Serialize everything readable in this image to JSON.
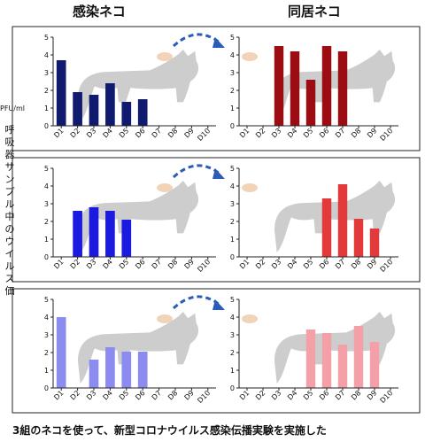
{
  "headers": {
    "infected": "感染ネコ",
    "cohoused": "同居ネコ"
  },
  "y_unit": "PFU/ml",
  "y_axis_label": "呼吸器サンプル中のウイルス価",
  "caption": "3組のネコを使って、新型コロナウイルス感染伝播実験を実施した",
  "colors": {
    "row1_infected": "#101a6e",
    "row1_cohoused": "#9b0d12",
    "row2_infected": "#1a1ae0",
    "row2_cohoused": "#e23a3a",
    "row3_infected": "#8c8cf0",
    "row3_cohoused": "#f4a0a8",
    "arrow": "#2a5cb8",
    "cat": "#c4c4c4"
  },
  "icons": {
    "cat": "cat-silhouette-icon",
    "arrow": "curved-arrow-icon",
    "food": "food-bowl-icon"
  },
  "chart_data": [
    {
      "type": "bar",
      "row": 1,
      "panel": "infected",
      "categories": [
        "D1",
        "D2",
        "D3",
        "D4",
        "D5",
        "D6",
        "D7",
        "D8",
        "D9",
        "D10"
      ],
      "values": [
        3.7,
        1.9,
        1.75,
        2.4,
        1.35,
        1.5,
        null,
        null,
        null,
        null
      ],
      "ylim": [
        0,
        5
      ],
      "yticks": [
        0,
        1,
        2,
        3,
        4,
        5
      ]
    },
    {
      "type": "bar",
      "row": 1,
      "panel": "cohoused",
      "categories": [
        "D1",
        "D2",
        "D3",
        "D4",
        "D5",
        "D6",
        "D7",
        "D8",
        "D9",
        "D10"
      ],
      "values": [
        null,
        null,
        4.5,
        4.2,
        2.6,
        4.5,
        4.2,
        null,
        null,
        null
      ],
      "ylim": [
        0,
        5
      ],
      "yticks": [
        0,
        1,
        2,
        3,
        4,
        5
      ]
    },
    {
      "type": "bar",
      "row": 2,
      "panel": "infected",
      "categories": [
        "D1",
        "D2",
        "D3",
        "D4",
        "D5",
        "D6",
        "D7",
        "D8",
        "D9",
        "D10"
      ],
      "values": [
        null,
        2.6,
        2.8,
        2.6,
        2.1,
        null,
        null,
        null,
        null,
        null
      ],
      "ylim": [
        0,
        5
      ],
      "yticks": [
        0,
        1,
        2,
        3,
        4,
        5
      ]
    },
    {
      "type": "bar",
      "row": 2,
      "panel": "cohoused",
      "categories": [
        "D1",
        "D2",
        "D3",
        "D4",
        "D5",
        "D6",
        "D7",
        "D8",
        "D9",
        "D10"
      ],
      "values": [
        null,
        null,
        null,
        null,
        null,
        3.3,
        4.1,
        2.15,
        1.6,
        null
      ],
      "ylim": [
        0,
        5
      ],
      "yticks": [
        0,
        1,
        2,
        3,
        4,
        5
      ]
    },
    {
      "type": "bar",
      "row": 3,
      "panel": "infected",
      "categories": [
        "D1",
        "D2",
        "D3",
        "D4",
        "D5",
        "D6",
        "D7",
        "D8",
        "D9",
        "D10"
      ],
      "values": [
        4.0,
        null,
        1.6,
        2.3,
        2.05,
        2.05,
        null,
        null,
        null,
        null
      ],
      "ylim": [
        0,
        5
      ],
      "yticks": [
        0,
        1,
        2,
        3,
        4,
        5
      ]
    },
    {
      "type": "bar",
      "row": 3,
      "panel": "cohoused",
      "categories": [
        "D1",
        "D2",
        "D3",
        "D4",
        "D5",
        "D6",
        "D7",
        "D8",
        "D9",
        "D10"
      ],
      "values": [
        null,
        null,
        null,
        null,
        3.3,
        3.1,
        2.45,
        3.5,
        2.6,
        null
      ],
      "ylim": [
        0,
        5
      ],
      "yticks": [
        0,
        1,
        2,
        3,
        4,
        5
      ]
    }
  ]
}
